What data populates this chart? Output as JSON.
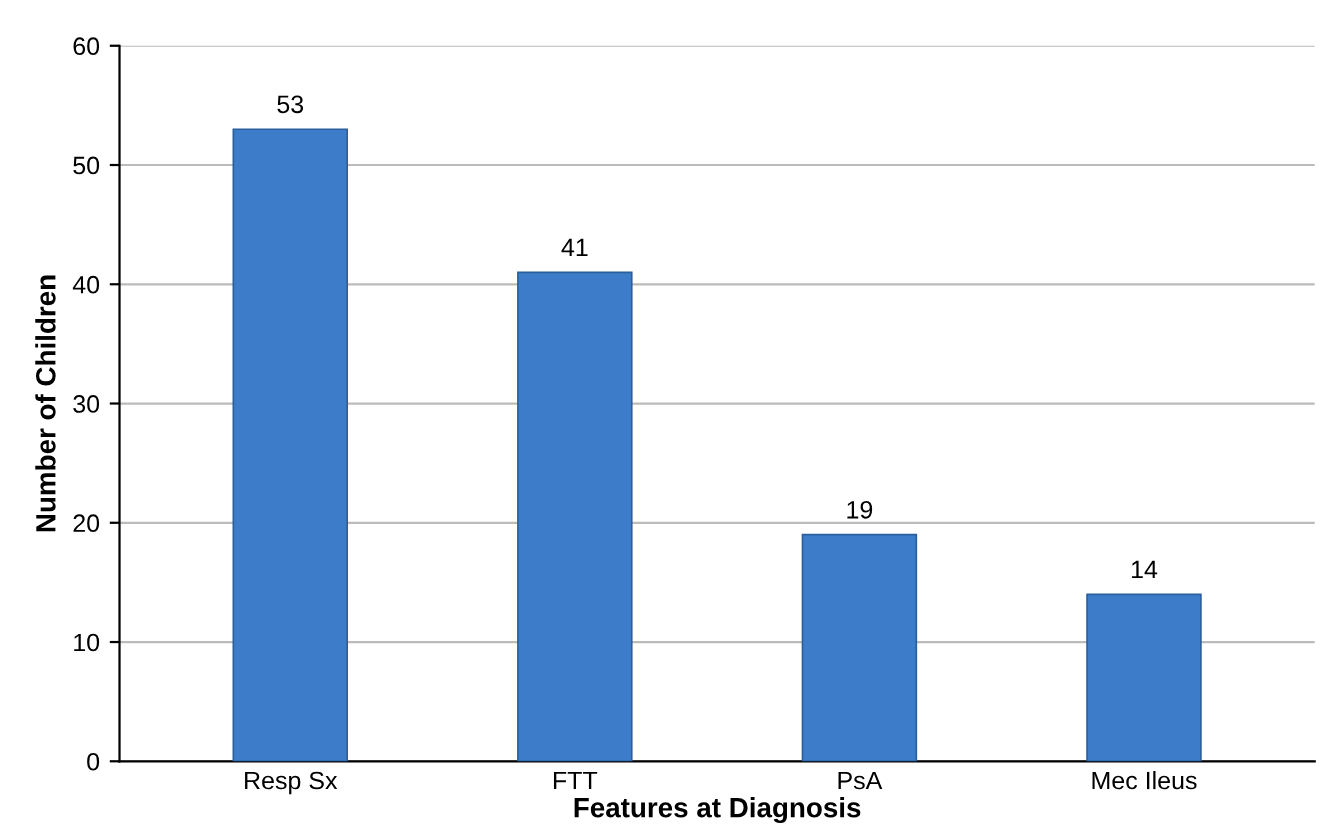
{
  "chart_data": {
    "type": "bar",
    "xlabel": "Features at Diagnosis",
    "ylabel": "Number of Children",
    "categories": [
      "Resp Sx",
      "FTT",
      "PsA",
      "Mec Ileus"
    ],
    "values": [
      53,
      41,
      19,
      14
    ],
    "color": "#3d7cc9",
    "ylim": [
      0,
      60
    ],
    "yticks": [
      0,
      10,
      20,
      30,
      40,
      50,
      60
    ],
    "grid": "y",
    "data_labels": true
  }
}
